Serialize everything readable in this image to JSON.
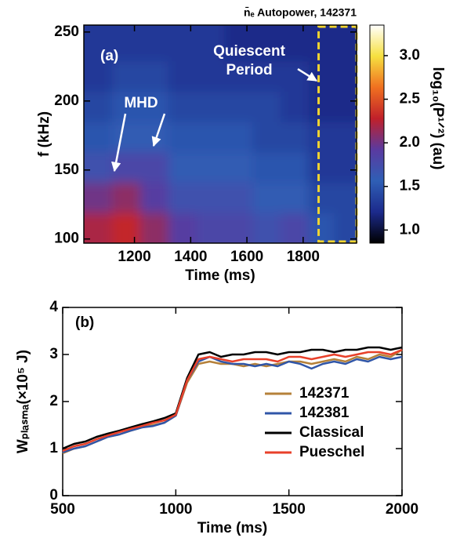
{
  "chart_data": [
    {
      "type": "heatmap",
      "title": "n̄ₑ Autopower, 142371",
      "xlabel": "Time (ms)",
      "ylabel": "f (kHz)",
      "colorbar_label": "log₁₀(P¹ᐟ²) (au)",
      "x": [
        1070,
        1170,
        1270,
        1370,
        1470,
        1570,
        1670,
        1770,
        1870,
        1950
      ],
      "y": [
        108,
        130,
        152,
        174,
        196,
        218,
        240
      ],
      "z": [
        [
          2.2,
          2.3,
          2.1,
          1.9,
          1.8,
          1.8,
          1.7,
          1.8,
          1.5,
          1.4
        ],
        [
          2.0,
          2.1,
          1.9,
          1.7,
          1.7,
          1.7,
          1.6,
          1.6,
          1.4,
          1.4
        ],
        [
          1.7,
          1.8,
          1.8,
          1.6,
          1.6,
          1.6,
          1.5,
          1.5,
          1.3,
          1.3
        ],
        [
          1.5,
          1.6,
          1.6,
          1.5,
          1.5,
          1.5,
          1.4,
          1.4,
          1.3,
          1.3
        ],
        [
          1.4,
          1.5,
          1.5,
          1.4,
          1.4,
          1.4,
          1.4,
          1.3,
          1.2,
          1.2
        ],
        [
          1.3,
          1.4,
          1.4,
          1.3,
          1.3,
          1.3,
          1.3,
          1.3,
          1.2,
          1.2
        ],
        [
          1.3,
          1.3,
          1.3,
          1.3,
          1.3,
          1.2,
          1.2,
          1.2,
          1.2,
          1.2
        ]
      ],
      "xlim": [
        1020,
        1990
      ],
      "xticks": [
        1200,
        1400,
        1600,
        1800
      ],
      "ylim": [
        97,
        255
      ],
      "yticks": [
        100,
        150,
        200,
        250
      ],
      "zlim": [
        0.85,
        3.35
      ],
      "zticks": [
        {
          "value": 1,
          "label": "1.0"
        },
        1.5,
        {
          "value": 2,
          "label": "2.0"
        },
        2.5,
        {
          "value": 3,
          "label": "3.0"
        }
      ],
      "colormap": [
        "#000000",
        "#1c2a8c",
        "#2f5fb5",
        "#5a3aa0",
        "#c0202a",
        "#f07020",
        "#f6e040",
        "#ffffff"
      ],
      "highlight_x": [
        1855,
        1990
      ],
      "highlight_color": "#f2d530",
      "annotations": [
        {
          "text": "(a)"
        },
        {
          "text": "MHD"
        },
        {
          "lines": [
            "Quiescent",
            "Period"
          ]
        }
      ]
    },
    {
      "type": "line",
      "xlabel": "Time (ms)",
      "ylabel": "Wₚₗₐₛₘₐ(×10⁵ J)",
      "x": [
        500,
        550,
        600,
        650,
        700,
        750,
        800,
        850,
        900,
        950,
        1000,
        1050,
        1100,
        1150,
        1200,
        1250,
        1300,
        1350,
        1400,
        1450,
        1500,
        1550,
        1600,
        1650,
        1700,
        1750,
        1800,
        1850,
        1900,
        1950,
        2000
      ],
      "series": [
        {
          "name": "142371",
          "color": "#b5813a",
          "values": [
            0.9,
            1.0,
            1.05,
            1.15,
            1.25,
            1.3,
            1.38,
            1.45,
            1.5,
            1.55,
            1.7,
            2.4,
            2.8,
            2.85,
            2.8,
            2.8,
            2.75,
            2.8,
            2.75,
            2.8,
            2.85,
            2.85,
            2.8,
            2.85,
            2.9,
            2.85,
            2.95,
            2.9,
            3.0,
            2.95,
            3.1
          ]
        },
        {
          "name": "142381",
          "color": "#3056a8",
          "values": [
            0.92,
            1.0,
            1.05,
            1.15,
            1.25,
            1.3,
            1.38,
            1.45,
            1.48,
            1.55,
            1.7,
            2.45,
            2.85,
            2.95,
            2.85,
            2.8,
            2.8,
            2.75,
            2.8,
            2.75,
            2.85,
            2.8,
            2.7,
            2.8,
            2.85,
            2.8,
            2.9,
            2.85,
            2.95,
            2.9,
            2.95
          ]
        },
        {
          "name": "Classical",
          "color": "#000000",
          "values": [
            1.0,
            1.1,
            1.15,
            1.25,
            1.32,
            1.38,
            1.45,
            1.52,
            1.58,
            1.65,
            1.75,
            2.5,
            3.0,
            3.05,
            2.95,
            3.0,
            3.0,
            3.05,
            3.05,
            3.0,
            3.05,
            3.05,
            3.1,
            3.1,
            3.05,
            3.1,
            3.1,
            3.15,
            3.15,
            3.1,
            3.15
          ]
        },
        {
          "name": "Pueschel",
          "color": "#e8402a",
          "values": [
            0.95,
            1.05,
            1.1,
            1.2,
            1.28,
            1.35,
            1.42,
            1.48,
            1.55,
            1.6,
            1.72,
            2.45,
            2.9,
            2.95,
            2.9,
            2.85,
            2.9,
            2.9,
            2.9,
            2.85,
            2.95,
            2.95,
            2.9,
            2.95,
            3.0,
            2.95,
            3.0,
            3.05,
            3.05,
            3.0,
            3.1
          ]
        }
      ],
      "xlim": [
        500,
        2000
      ],
      "xticks": [
        500,
        1000,
        1500,
        2000
      ],
      "ylim": [
        0,
        4
      ],
      "yticks": [
        0,
        1,
        2,
        3,
        4
      ],
      "legend": "lower right",
      "annotations": [
        {
          "text": "(b)"
        }
      ]
    }
  ]
}
